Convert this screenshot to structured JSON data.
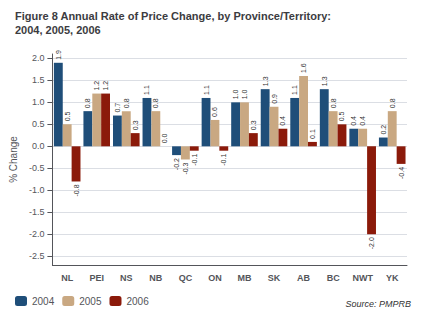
{
  "chart_data": {
    "type": "bar",
    "title": "Figure 8 Annual Rate of Price Change, by Province/Territory:\n2004, 2005, 2006",
    "ylabel": "% Change",
    "annotation": "Source: PMPRB",
    "categories": [
      "NL",
      "PEI",
      "NS",
      "NB",
      "QC",
      "ON",
      "MB",
      "SK",
      "AB",
      "BC",
      "NWT",
      "YK"
    ],
    "series": [
      {
        "name": "2004",
        "color": "#1F4E79",
        "values": [
          1.9,
          0.8,
          0.7,
          1.1,
          -0.2,
          1.1,
          1.0,
          1.3,
          1.1,
          1.3,
          0.4,
          0.2
        ],
        "value_labels": [
          "1.9",
          "0.8",
          "0.7",
          "1.1",
          "-0.2",
          "1.1",
          "1.0",
          "1.3",
          "1.1",
          "1.3",
          "0.4",
          "0.2"
        ]
      },
      {
        "name": "2005",
        "color": "#C9A882",
        "values": [
          0.5,
          1.2,
          0.8,
          0.8,
          -0.3,
          0.6,
          1.0,
          0.9,
          1.6,
          0.8,
          0.4,
          0.8
        ],
        "value_labels": [
          "0.5",
          "1.2",
          "0.8",
          "0.8",
          "-0.3",
          "0.6",
          "1.0",
          "0.9",
          "1.6",
          "0.8",
          "0.4",
          "0.8"
        ]
      },
      {
        "name": "2006",
        "color": "#8B1A0A",
        "values": [
          -0.8,
          1.2,
          0.3,
          0.0,
          -0.1,
          -0.1,
          0.3,
          0.4,
          0.1,
          0.5,
          -2.0,
          -0.4
        ],
        "value_labels": [
          "-0.8",
          "1.2",
          "0.3",
          "0.0",
          "-0.1",
          "-0.1",
          "0.3",
          "0.4",
          "0.1",
          "0.5",
          "-2.0",
          "-0.4"
        ]
      }
    ],
    "ylim": [
      -2.7,
      2.1
    ],
    "yticks": [
      -2.5,
      {
        "value": -2.0,
        "label": "-2.0"
      },
      -1.5,
      {
        "value": -1.0,
        "label": "-1.0"
      },
      -0.5,
      {
        "value": 0.0,
        "label": "0.0"
      },
      0.5,
      {
        "value": 1.0,
        "label": "1.0"
      },
      1.5,
      {
        "value": 2.0,
        "label": "2.0"
      }
    ],
    "grid": true,
    "legend": "lower left",
    "data_labels": true
  }
}
